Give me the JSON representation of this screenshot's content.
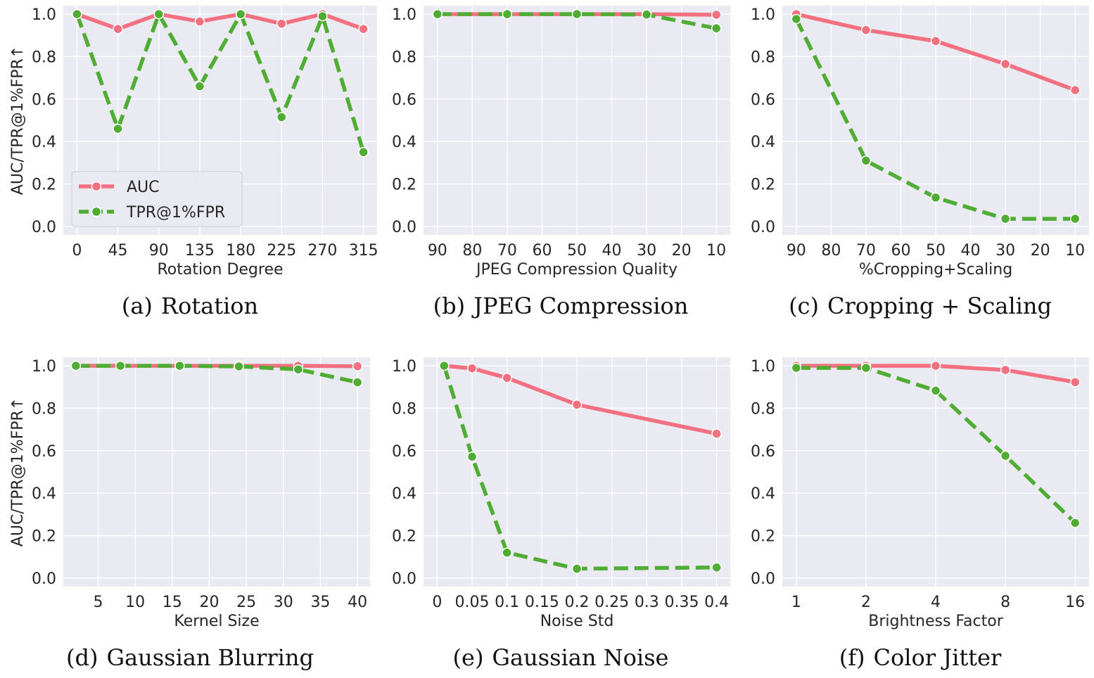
{
  "colors": {
    "auc": "#f2707f",
    "tpr": "#4fad33",
    "plot_bg": "#eaeaf2",
    "grid": "#ffffff"
  },
  "ylabel": "AUC/TPR@1%FPR↑",
  "legend": {
    "location": "center-left",
    "entries": [
      "AUC",
      "TPR@1%FPR"
    ]
  },
  "captions": [
    {
      "tag": "(a)",
      "text": "Rotation"
    },
    {
      "tag": "(b)",
      "text": "JPEG Compression"
    },
    {
      "tag": "(c)",
      "text": "Cropping + Scaling"
    },
    {
      "tag": "(d)",
      "text": "Gaussian Blurring"
    },
    {
      "tag": "(e)",
      "text": "Gaussian Noise"
    },
    {
      "tag": "(f)",
      "text": "Color Jitter"
    }
  ],
  "chart_data": [
    {
      "type": "line",
      "xlabel": "Rotation Degree",
      "ylabel": "AUC/TPR@1%FPR↑",
      "x_ticks": [
        "0",
        "45",
        "90",
        "135",
        "180",
        "225",
        "270",
        "315"
      ],
      "xlim": [
        -15,
        330
      ],
      "ylim": [
        -0.04,
        1.04
      ],
      "y_ticks": [
        "0.0",
        "0.2",
        "0.4",
        "0.6",
        "0.8",
        "1.0"
      ],
      "legend": true,
      "series": [
        {
          "name": "AUC",
          "style": "solid",
          "x": [
            0,
            45,
            90,
            135,
            180,
            225,
            270,
            315
          ],
          "values": [
            1.0,
            0.93,
            1.0,
            0.965,
            1.0,
            0.955,
            1.0,
            0.93
          ]
        },
        {
          "name": "TPR@1%FPR",
          "style": "dashed",
          "x": [
            0,
            45,
            90,
            135,
            180,
            225,
            270,
            315
          ],
          "values": [
            1.0,
            0.46,
            1.0,
            0.66,
            1.0,
            0.515,
            0.99,
            0.35
          ]
        }
      ]
    },
    {
      "type": "line",
      "xlabel": "JPEG Compression Quality",
      "ylabel": "",
      "x_ticks": [
        "90",
        "80",
        "70",
        "60",
        "50",
        "40",
        "30",
        "20",
        "10"
      ],
      "xlim": [
        94,
        6
      ],
      "ylim": [
        -0.04,
        1.04
      ],
      "y_ticks": [
        "0.0",
        "0.2",
        "0.4",
        "0.6",
        "0.8",
        "1.0"
      ],
      "legend": false,
      "series": [
        {
          "name": "AUC",
          "style": "solid",
          "x": [
            90,
            70,
            50,
            30,
            10
          ],
          "values": [
            1.0,
            1.0,
            1.0,
            1.0,
            0.997
          ]
        },
        {
          "name": "TPR@1%FPR",
          "style": "dashed",
          "x": [
            90,
            70,
            50,
            30,
            10
          ],
          "values": [
            1.0,
            1.0,
            1.0,
            0.998,
            0.933
          ]
        }
      ]
    },
    {
      "type": "line",
      "xlabel": "%Cropping+Scaling",
      "ylabel": "",
      "x_ticks": [
        "90",
        "80",
        "70",
        "60",
        "50",
        "40",
        "30",
        "20",
        "10"
      ],
      "xlim": [
        94,
        6
      ],
      "ylim": [
        -0.04,
        1.04
      ],
      "y_ticks": [
        "0.0",
        "0.2",
        "0.4",
        "0.6",
        "0.8",
        "1.0"
      ],
      "legend": false,
      "series": [
        {
          "name": "AUC",
          "style": "solid",
          "x": [
            90,
            70,
            50,
            30,
            10
          ],
          "values": [
            1.0,
            0.925,
            0.873,
            0.765,
            0.642
          ]
        },
        {
          "name": "TPR@1%FPR",
          "style": "dashed",
          "x": [
            90,
            70,
            50,
            30,
            10
          ],
          "values": [
            0.977,
            0.31,
            0.136,
            0.036,
            0.036
          ]
        }
      ]
    },
    {
      "type": "line",
      "xlabel": "Kernel Size",
      "ylabel": "AUC/TPR@1%FPR↑",
      "x_ticks": [
        "5",
        "10",
        "15",
        "20",
        "25",
        "30",
        "35",
        "40"
      ],
      "xlim": [
        0.3,
        41.7
      ],
      "ylim": [
        -0.04,
        1.04
      ],
      "y_ticks": [
        "0.0",
        "0.2",
        "0.4",
        "0.6",
        "0.8",
        "1.0"
      ],
      "legend": false,
      "series": [
        {
          "name": "AUC",
          "style": "solid",
          "x": [
            2,
            8,
            16,
            24,
            32,
            40
          ],
          "values": [
            1.0,
            1.0,
            1.0,
            1.0,
            1.0,
            0.998
          ]
        },
        {
          "name": "TPR@1%FPR",
          "style": "dashed",
          "x": [
            2,
            8,
            16,
            24,
            32,
            40
          ],
          "values": [
            1.0,
            1.0,
            1.0,
            0.997,
            0.983,
            0.922
          ]
        }
      ]
    },
    {
      "type": "line",
      "xlabel": "Noise Std",
      "ylabel": "",
      "x_ticks": [
        "0",
        "0.05",
        "0.1",
        "0.15",
        "0.2",
        "0.25",
        "0.3",
        "0.35",
        "0.4"
      ],
      "xlim": [
        -0.0195,
        0.4195
      ],
      "ylim": [
        -0.04,
        1.04
      ],
      "y_ticks": [
        "0.0",
        "0.2",
        "0.4",
        "0.6",
        "0.8",
        "1.0"
      ],
      "legend": false,
      "series": [
        {
          "name": "AUC",
          "style": "solid",
          "x": [
            0.01,
            0.05,
            0.1,
            0.2,
            0.4
          ],
          "values": [
            1.0,
            0.988,
            0.943,
            0.817,
            0.68
          ]
        },
        {
          "name": "TPR@1%FPR",
          "style": "dashed",
          "x": [
            0.01,
            0.05,
            0.1,
            0.2,
            0.4
          ],
          "values": [
            1.0,
            0.572,
            0.12,
            0.044,
            0.05
          ]
        }
      ]
    },
    {
      "type": "line",
      "xlabel": "Brightness Factor",
      "ylabel": "",
      "x_ticks": [
        "1",
        "2",
        "4",
        "8",
        "16"
      ],
      "xlim": [
        -0.2,
        4.2
      ],
      "ylim": [
        -0.04,
        1.04
      ],
      "y_ticks": [
        "0.0",
        "0.2",
        "0.4",
        "0.6",
        "0.8",
        "1.0"
      ],
      "legend": false,
      "x_scale": "log2",
      "series": [
        {
          "name": "AUC",
          "style": "solid",
          "x": [
            1,
            2,
            4,
            8,
            16
          ],
          "values": [
            1.0,
            1.0,
            1.0,
            0.98,
            0.923
          ]
        },
        {
          "name": "TPR@1%FPR",
          "style": "dashed",
          "x": [
            1,
            2,
            4,
            8,
            16
          ],
          "values": [
            0.99,
            0.99,
            0.883,
            0.576,
            0.26
          ]
        }
      ]
    }
  ]
}
